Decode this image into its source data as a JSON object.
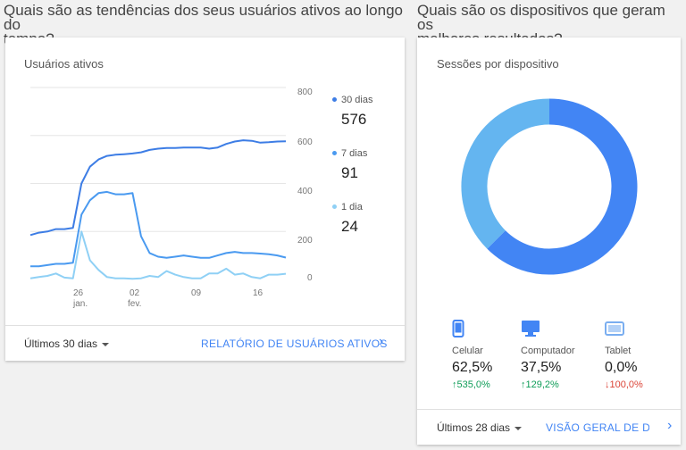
{
  "left_section": {
    "title_line1": "Quais são as tendências dos seus usuários ativos ao longo do",
    "title_line2": "tempo?"
  },
  "right_section": {
    "title_line1": "Quais são os dispositivos que geram os",
    "title_line2": "melhores resultados?"
  },
  "active_users_card": {
    "title": "Usuários ativos",
    "y_ticks": [
      "800",
      "600",
      "400",
      "200",
      "0"
    ],
    "x_ticks": [
      "26",
      "jan.",
      "02",
      "fev.",
      "09",
      "16"
    ],
    "legend": [
      {
        "name": "30 dias",
        "value": "576",
        "color": "#3d7de5"
      },
      {
        "name": "7 dias",
        "value": "91",
        "color": "#4a9af0"
      },
      {
        "name": "1 dia",
        "value": "24",
        "color": "#8fd0f5"
      }
    ],
    "range_label": "Últimos 30 dias",
    "report_link": "RELATÓRIO DE USUÁRIOS ATIVOS"
  },
  "chart_data": {
    "type": "line",
    "title": "Usuários ativos",
    "ylim": [
      0,
      800
    ],
    "x": [
      "jan. 20",
      "jan. 21",
      "jan. 22",
      "jan. 23",
      "jan. 24",
      "jan. 25",
      "jan. 26",
      "jan. 27",
      "jan. 28",
      "jan. 29",
      "jan. 30",
      "jan. 31",
      "fev. 01",
      "fev. 02",
      "fev. 03",
      "fev. 04",
      "fev. 05",
      "fev. 06",
      "fev. 07",
      "fev. 08",
      "fev. 09",
      "fev. 10",
      "fev. 11",
      "fev. 12",
      "fev. 13",
      "fev. 14",
      "fev. 15",
      "fev. 16",
      "fev. 17",
      "fev. 18",
      "fev. 19"
    ],
    "series": [
      {
        "name": "30 dias",
        "color": "#3d7de5",
        "values": [
          185,
          195,
          200,
          210,
          210,
          215,
          400,
          470,
          500,
          515,
          520,
          522,
          525,
          530,
          540,
          545,
          548,
          548,
          550,
          550,
          550,
          545,
          550,
          565,
          575,
          580,
          578,
          570,
          572,
          575,
          576
        ]
      },
      {
        "name": "7 dias",
        "color": "#4a9af0",
        "values": [
          55,
          55,
          60,
          65,
          65,
          70,
          270,
          330,
          360,
          365,
          355,
          355,
          360,
          180,
          110,
          95,
          90,
          95,
          100,
          95,
          90,
          90,
          100,
          110,
          115,
          110,
          110,
          108,
          105,
          100,
          91
        ]
      },
      {
        "name": "1 dia",
        "color": "#8fd0f5",
        "values": [
          5,
          10,
          15,
          25,
          8,
          5,
          200,
          80,
          40,
          10,
          5,
          5,
          3,
          5,
          15,
          10,
          35,
          20,
          10,
          5,
          5,
          25,
          25,
          45,
          20,
          25,
          10,
          5,
          20,
          20,
          24
        ]
      }
    ]
  },
  "devices_card": {
    "title": "Sessões por dispositivo",
    "devices": [
      {
        "name": "Celular",
        "pct": "62,5%",
        "change": "535,0%",
        "direction": "up",
        "icon": "smartphone-icon",
        "color": "#4285f4"
      },
      {
        "name": "Computador",
        "pct": "37,5%",
        "change": "129,2%",
        "direction": "up",
        "icon": "desktop-icon",
        "color": "#4285f4"
      },
      {
        "name": "Tablet",
        "pct": "0,0%",
        "change": "100,0%",
        "direction": "down",
        "icon": "tablet-icon",
        "color": "#7aaef0"
      }
    ],
    "donut": [
      {
        "name": "Celular",
        "value": 62.5,
        "color": "#4285f4"
      },
      {
        "name": "Computador",
        "value": 37.5,
        "color": "#64b5f0"
      }
    ],
    "up_color": "#0f9d58",
    "down_color": "#db4437",
    "range_label": "Últimos 28 dias",
    "report_link": "VISÃO GERAL DE DI..."
  }
}
